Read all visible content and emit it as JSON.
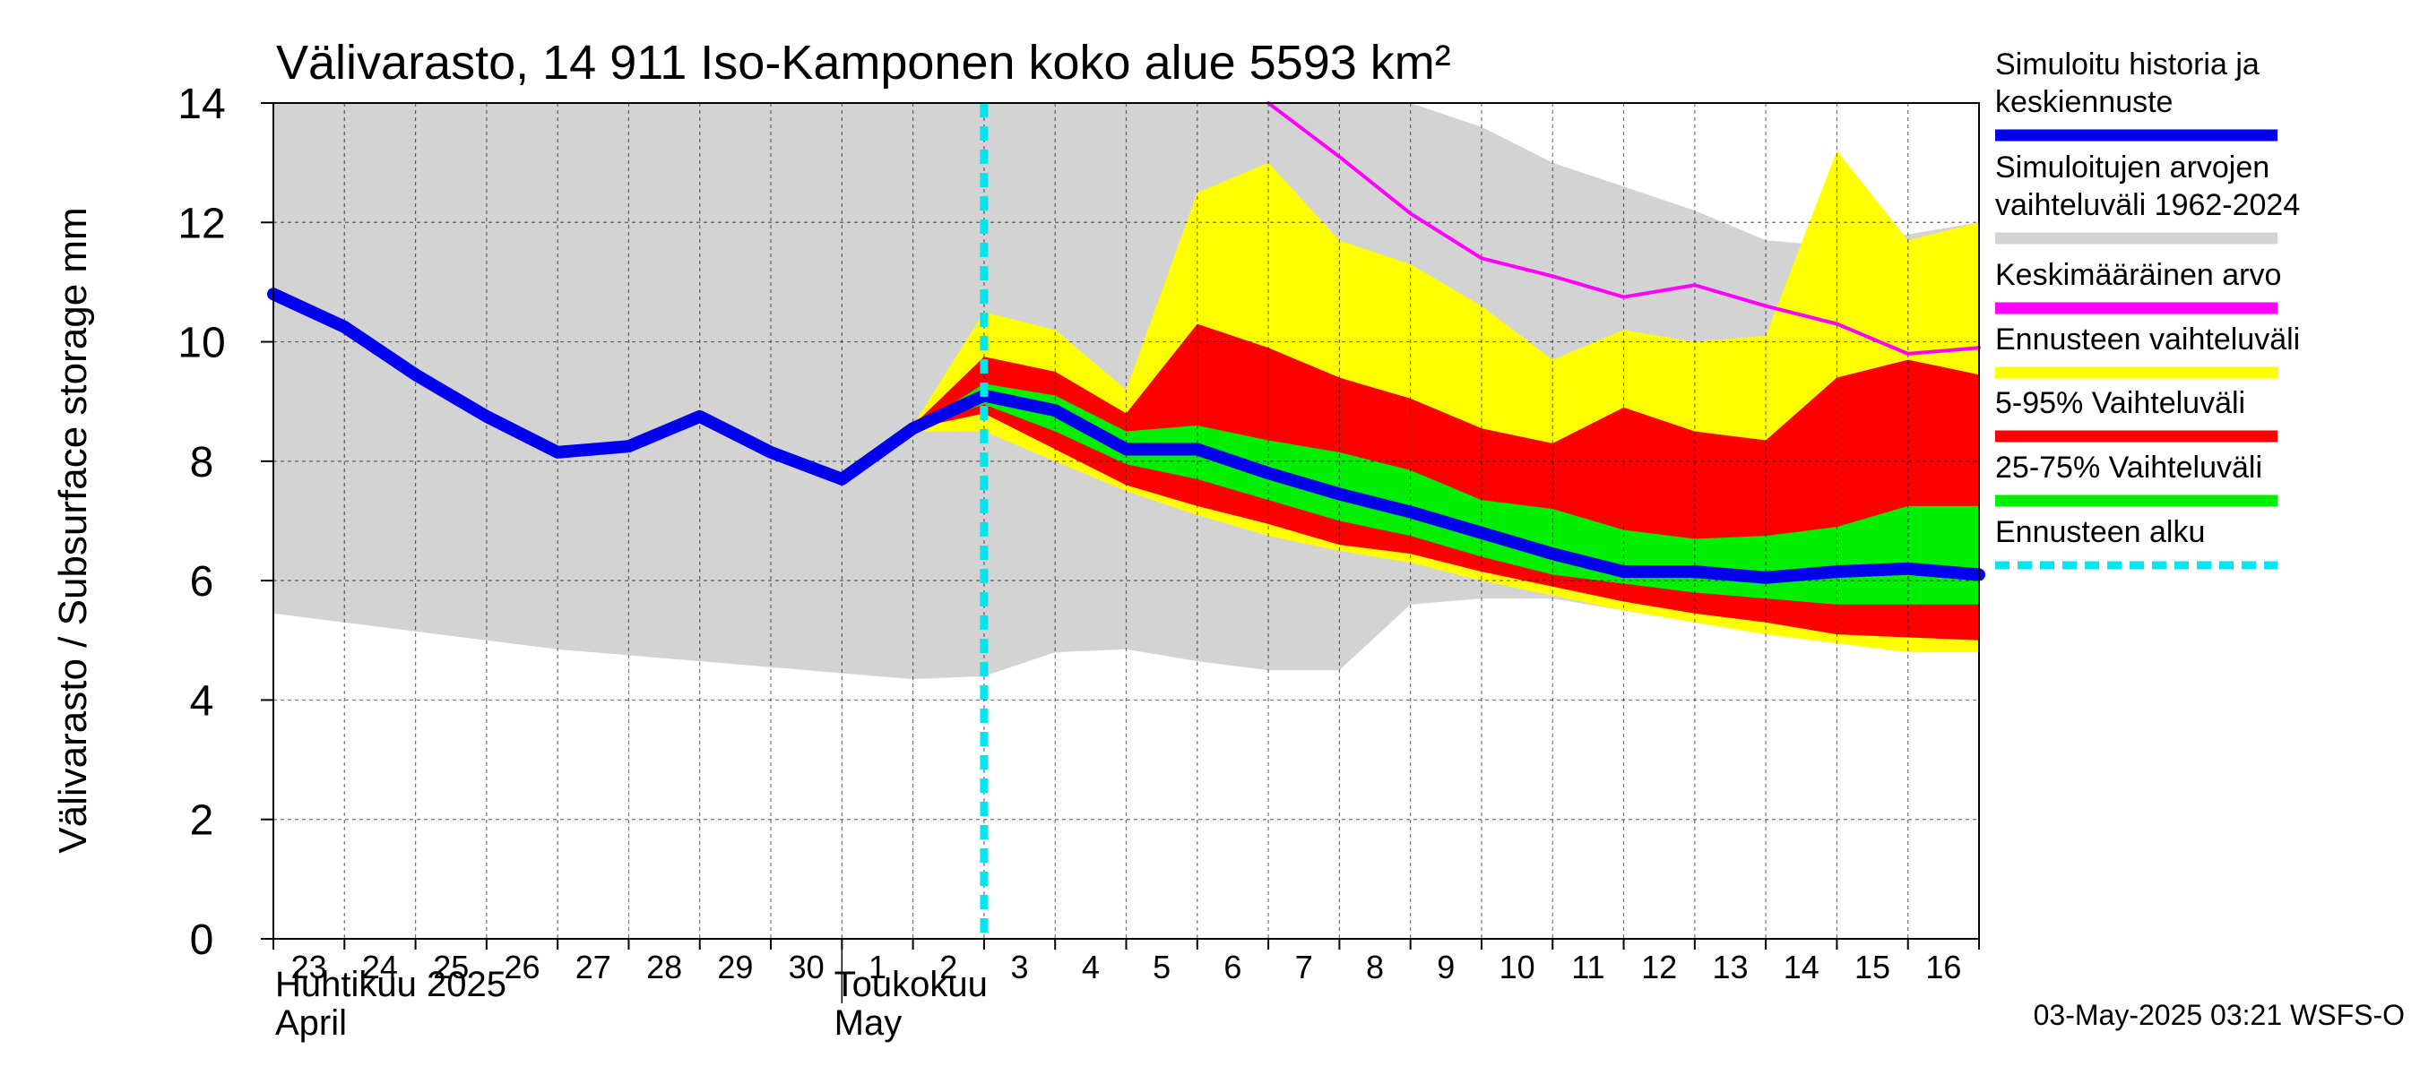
{
  "chart_data": {
    "type": "area",
    "title": "Välivarasto, 14 911 Iso-Kamponen koko alue 5593 km²",
    "ylabel": "Välivarasto / Subsurface storage  mm",
    "ylim": [
      0,
      14
    ],
    "yticks": [
      0,
      2,
      4,
      6,
      8,
      10,
      12,
      14
    ],
    "xlim": [
      0,
      24
    ],
    "day_labels": [
      "23",
      "24",
      "25",
      "26",
      "27",
      "28",
      "29",
      "30",
      "1",
      "2",
      "3",
      "4",
      "5",
      "6",
      "7",
      "8",
      "9",
      "10",
      "11",
      "12",
      "13",
      "14",
      "15",
      "16"
    ],
    "month_labels": [
      {
        "line1": "Huhtikuu  2025",
        "line2": "April"
      },
      {
        "line1": "Toukokuu",
        "line2": "May"
      }
    ],
    "forecast_start_x": 10,
    "series": [
      {
        "name": "Simuloitujen arvojen vaihteluväli 1962-2024",
        "kind": "band",
        "color": "#d3d3d3",
        "x": [
          0,
          1,
          2,
          3,
          4,
          5,
          6,
          7,
          8,
          9,
          10,
          11,
          12,
          13,
          14,
          15,
          16,
          17,
          18,
          19,
          20,
          21,
          22,
          23,
          24
        ],
        "upper": [
          14,
          14,
          14,
          14,
          14,
          14,
          14,
          14,
          14,
          14,
          14,
          14,
          14,
          14,
          14,
          14,
          14,
          13.6,
          13.0,
          12.6,
          12.2,
          11.7,
          11.6,
          11.8,
          12.0
        ],
        "lower": [
          5.45,
          5.3,
          5.15,
          5.0,
          4.85,
          4.75,
          4.65,
          4.55,
          4.45,
          4.35,
          4.4,
          4.8,
          4.85,
          4.65,
          4.5,
          4.5,
          5.6,
          5.7,
          5.7,
          5.5,
          5.4,
          5.2,
          5.0,
          4.9,
          4.8
        ]
      },
      {
        "name": "Ennusteen vaihteluväli",
        "kind": "band",
        "color": "#ffff00",
        "x": [
          9,
          10,
          11,
          12,
          13,
          14,
          15,
          16,
          17,
          18,
          19,
          20,
          21,
          22,
          23,
          24
        ],
        "upper": [
          8.6,
          10.5,
          10.2,
          9.2,
          12.5,
          13.0,
          11.7,
          11.3,
          10.6,
          9.7,
          10.2,
          10.0,
          10.1,
          13.2,
          11.7,
          12.0
        ],
        "lower": [
          8.5,
          8.5,
          8.0,
          7.5,
          7.1,
          6.75,
          6.5,
          6.3,
          6.0,
          5.75,
          5.5,
          5.3,
          5.1,
          4.95,
          4.8,
          4.8
        ]
      },
      {
        "name": "5-95% Vaihteluväli",
        "kind": "band",
        "color": "#ff0000",
        "x": [
          9,
          10,
          11,
          12,
          13,
          14,
          15,
          16,
          17,
          18,
          19,
          20,
          21,
          22,
          23,
          24
        ],
        "upper": [
          8.6,
          9.75,
          9.5,
          8.8,
          10.3,
          9.9,
          9.4,
          9.05,
          8.55,
          8.3,
          8.9,
          8.5,
          8.35,
          9.4,
          9.7,
          9.45
        ],
        "lower": [
          8.55,
          8.8,
          8.2,
          7.6,
          7.25,
          6.95,
          6.6,
          6.45,
          6.15,
          5.9,
          5.65,
          5.45,
          5.3,
          5.1,
          5.05,
          5.0
        ]
      },
      {
        "name": "25-75% Vaihteluväli",
        "kind": "band",
        "color": "#00ee00",
        "x": [
          9,
          10,
          11,
          12,
          13,
          14,
          15,
          16,
          17,
          18,
          19,
          20,
          21,
          22,
          23,
          24
        ],
        "upper": [
          8.55,
          9.3,
          9.1,
          8.5,
          8.6,
          8.35,
          8.15,
          7.85,
          7.35,
          7.2,
          6.85,
          6.7,
          6.75,
          6.9,
          7.25,
          7.25
        ],
        "lower": [
          8.55,
          8.95,
          8.5,
          7.95,
          7.7,
          7.35,
          7.0,
          6.75,
          6.4,
          6.1,
          5.95,
          5.8,
          5.7,
          5.6,
          5.6,
          5.6
        ]
      },
      {
        "name": "Simuloitu historia ja keskiennuste",
        "kind": "line",
        "color": "#0000ee",
        "width": 14,
        "x": [
          0,
          1,
          2,
          3,
          4,
          5,
          6,
          7,
          8,
          9,
          10,
          11,
          12,
          13,
          14,
          15,
          16,
          17,
          18,
          19,
          20,
          21,
          22,
          23,
          24
        ],
        "y": [
          10.8,
          10.25,
          9.45,
          8.75,
          8.15,
          8.25,
          8.75,
          8.15,
          7.7,
          8.55,
          9.1,
          8.85,
          8.2,
          8.2,
          7.8,
          7.45,
          7.15,
          6.8,
          6.45,
          6.15,
          6.15,
          6.05,
          6.15,
          6.2,
          6.1
        ]
      },
      {
        "name": "Keskimääräinen arvo",
        "kind": "line",
        "color": "#ff00ff",
        "width": 4,
        "x": [
          14,
          15,
          16,
          17,
          18,
          19,
          20,
          21,
          22,
          23,
          24
        ],
        "y": [
          14.0,
          13.1,
          12.15,
          11.4,
          11.1,
          10.75,
          10.95,
          10.6,
          10.3,
          9.8,
          9.9
        ]
      }
    ],
    "legend": [
      {
        "label": "Simuloitu historia ja keskiennuste",
        "color": "#0000ee",
        "style": "solid"
      },
      {
        "label": "Simuloitujen arvojen vaihteluväli 1962-2024",
        "color": "#d3d3d3",
        "style": "solid"
      },
      {
        "label": "Keskimääräinen arvo",
        "color": "#ff00ff",
        "style": "solid"
      },
      {
        "label": "Ennusteen vaihteluväli",
        "color": "#ffff00",
        "style": "solid"
      },
      {
        "label": "5-95% Vaihteluväli",
        "color": "#ff0000",
        "style": "solid"
      },
      {
        "label": "25-75% Vaihteluväli",
        "color": "#00ee00",
        "style": "solid"
      },
      {
        "label": "Ennusteen alku",
        "color": "#00e5ee",
        "style": "dashed"
      }
    ],
    "legend_lines": [
      [
        "Simuloitu historia ja",
        "keskiennuste"
      ],
      [
        "Simuloitujen arvojen",
        "vaihteluväli 1962-2024"
      ],
      [
        "Keskimääräinen arvo"
      ],
      [
        "Ennusteen vaihteluväli"
      ],
      [
        "5-95% Vaihteluväli"
      ],
      [
        "25-75% Vaihteluväli"
      ],
      [
        "Ennusteen alku"
      ]
    ],
    "footer": "03-May-2025 03:21 WSFS-O"
  }
}
